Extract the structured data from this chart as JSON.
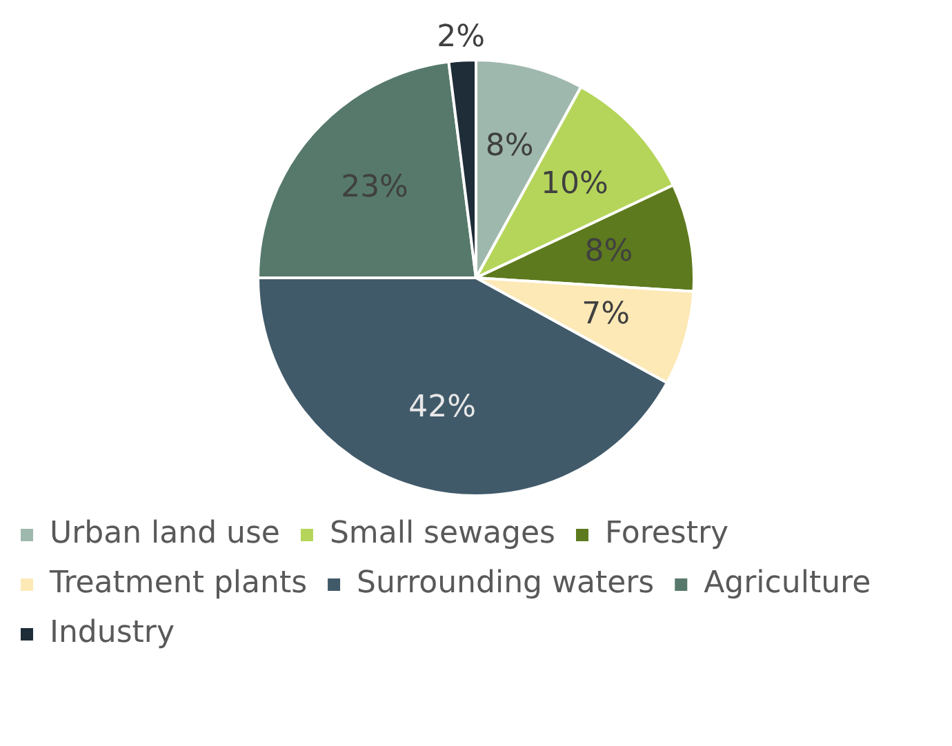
{
  "chart_data": {
    "type": "pie",
    "categories": [
      "Urban land use",
      "Small sewages",
      "Forestry",
      "Treatment plants",
      "Surrounding waters",
      "Agriculture",
      "Industry"
    ],
    "values": [
      8,
      10,
      8,
      7,
      42,
      23,
      2
    ],
    "value_labels": [
      "8%",
      "10%",
      "8%",
      "7%",
      "42%",
      "23%",
      "2%"
    ],
    "colors": [
      "#9fb8ad",
      "#b5d55a",
      "#5d7a1e",
      "#fde9b6",
      "#415a6a",
      "#56796b",
      "#1e2d38"
    ],
    "legend": "bottom"
  }
}
